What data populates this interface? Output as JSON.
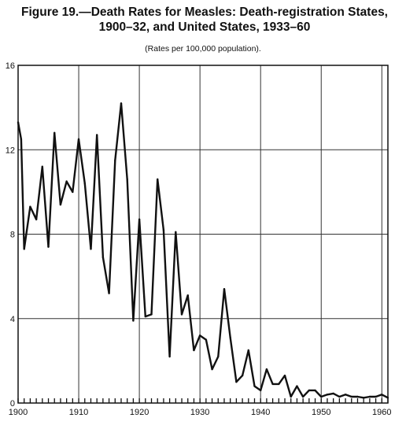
{
  "chart_data": {
    "type": "line",
    "title_line1": "Figure 19.—Death Rates for Measles: Death-registration States,",
    "title_line2": "1900–32, and United States, 1933–60",
    "subtitle": "(Rates per 100,000 population).",
    "xlabel": "",
    "ylabel": "",
    "xlim": [
      1900,
      1961
    ],
    "ylim": [
      0,
      16
    ],
    "x_ticks": [
      1900,
      1910,
      1920,
      1930,
      1940,
      1950,
      1960
    ],
    "y_ticks": [
      0,
      4,
      8,
      12,
      16
    ],
    "grid": true,
    "x": [
      1900,
      1900.5,
      1901,
      1902,
      1903,
      1904,
      1905,
      1906,
      1907,
      1908,
      1909,
      1910,
      1911,
      1912,
      1913,
      1914,
      1915,
      1916,
      1917,
      1918,
      1919,
      1920,
      1921,
      1922,
      1923,
      1924,
      1925,
      1926,
      1927,
      1928,
      1929,
      1930,
      1931,
      1932,
      1933,
      1934,
      1935,
      1936,
      1937,
      1938,
      1939,
      1940,
      1941,
      1942,
      1943,
      1944,
      1945,
      1946,
      1947,
      1948,
      1949,
      1950,
      1951,
      1952,
      1953,
      1954,
      1955,
      1956,
      1957,
      1958,
      1959,
      1960,
      1961
    ],
    "values": [
      13.3,
      12.5,
      7.3,
      9.3,
      8.7,
      11.2,
      7.4,
      12.8,
      9.4,
      10.5,
      10.0,
      12.5,
      10.4,
      7.3,
      12.7,
      6.9,
      5.2,
      11.5,
      14.2,
      10.6,
      3.9,
      8.7,
      4.1,
      4.2,
      10.6,
      8.2,
      2.2,
      8.1,
      4.2,
      5.1,
      2.5,
      3.2,
      3.0,
      1.6,
      2.2,
      5.4,
      3.1,
      1.0,
      1.3,
      2.5,
      0.8,
      0.6,
      1.6,
      0.9,
      0.9,
      1.3,
      0.3,
      0.8,
      0.3,
      0.6,
      0.6,
      0.3,
      0.4,
      0.45,
      0.3,
      0.4,
      0.3,
      0.3,
      0.25,
      0.3,
      0.3,
      0.4,
      0.25
    ]
  }
}
